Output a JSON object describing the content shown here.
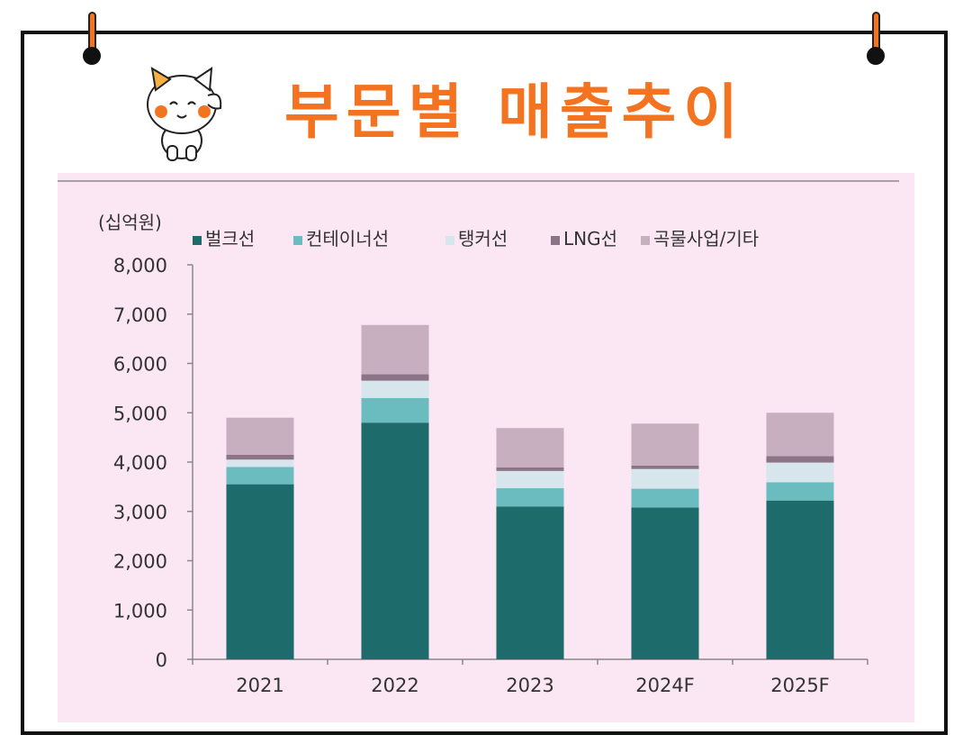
{
  "page": {
    "title": "부문별 매출추이"
  },
  "icons": {
    "pin_left": "pushpin-icon",
    "pin_right": "pushpin-icon",
    "mascot": "cat-mascot-icon"
  },
  "colors": {
    "title": "#f47320",
    "panel_background": "#fbe6f4"
  },
  "chart_data": {
    "type": "bar",
    "stacked": true,
    "unit": "(십억원)",
    "categories": [
      "2021",
      "2022",
      "2023",
      "2024F",
      "2025F"
    ],
    "series": [
      {
        "name": "벌크선",
        "color": "#1e6b6b",
        "values": [
          3550,
          4800,
          3100,
          3080,
          3220
        ]
      },
      {
        "name": "컨테이너선",
        "color": "#6bbcbe",
        "values": [
          350,
          500,
          370,
          380,
          370
        ]
      },
      {
        "name": "탱커선",
        "color": "#d6e6ec",
        "values": [
          150,
          350,
          350,
          400,
          400
        ]
      },
      {
        "name": "LNG선",
        "color": "#8a7485",
        "values": [
          100,
          130,
          70,
          70,
          130
        ]
      },
      {
        "name": "곡물사업/기타",
        "color": "#c8afc0",
        "values": [
          750,
          1000,
          800,
          850,
          880
        ]
      }
    ],
    "ylim": [
      0,
      8000
    ],
    "yticks": [
      "0",
      "1,000",
      "2,000",
      "3,000",
      "4,000",
      "5,000",
      "6,000",
      "7,000",
      "8,000"
    ],
    "ytick_values": [
      0,
      1000,
      2000,
      3000,
      4000,
      5000,
      6000,
      7000,
      8000
    ],
    "grid": false,
    "legend_position": "top"
  }
}
